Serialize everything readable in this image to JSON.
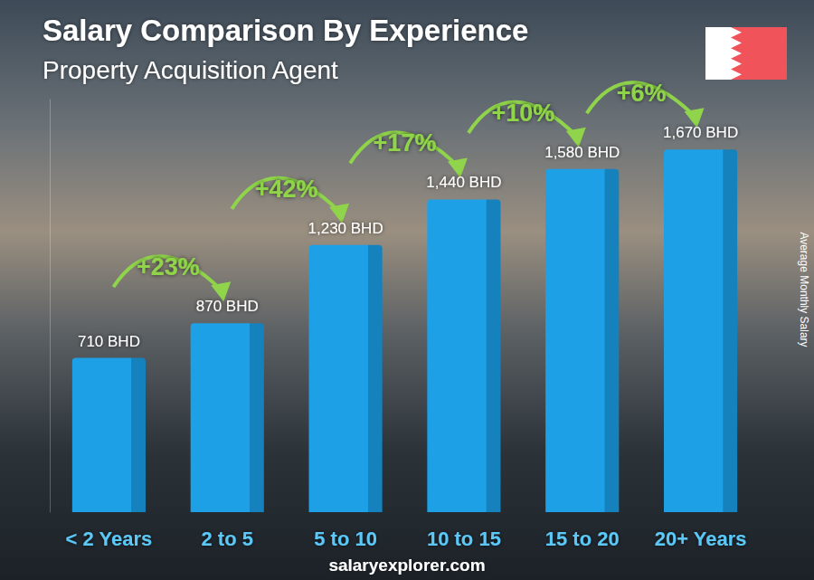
{
  "chart_data": {
    "type": "bar",
    "title": "Salary Comparison By Experience",
    "subtitle": "Property Acquisition Agent",
    "categories": [
      "< 2 Years",
      "2 to 5",
      "5 to 10",
      "10 to 15",
      "15 to 20",
      "20+ Years"
    ],
    "values": [
      710,
      870,
      1230,
      1440,
      1580,
      1670
    ],
    "value_labels": [
      "710 BHD",
      "870 BHD",
      "1,230 BHD",
      "1,440 BHD",
      "1,580 BHD",
      "1,670 BHD"
    ],
    "color": "#1ea0e6",
    "ylim": [
      0,
      1900
    ],
    "ylabel": "Average Monthly Salary",
    "annotations": [
      "+23%",
      "+42%",
      "+17%",
      "+10%",
      "+6%"
    ],
    "source": "salaryexplorer.com",
    "data_labels": true,
    "tick_labels": "x",
    "grid": false
  }
}
